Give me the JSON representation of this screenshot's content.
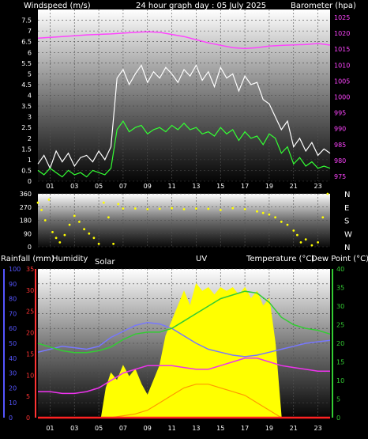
{
  "chart_data": [
    {
      "type": "line",
      "title": "24 hour graph day : 05 July 2025",
      "left_axis_label": "Windspeed (m/s)",
      "right_axis_label": "Barometer (hpa)",
      "x_ticks": [
        "01",
        "03",
        "05",
        "07",
        "09",
        "11",
        "13",
        "15",
        "17",
        "19",
        "21",
        "23"
      ],
      "x_range": [
        0,
        24
      ],
      "left_ticks": [
        "0",
        "0.5",
        "1",
        "1.5",
        "2",
        "2.5",
        "3",
        "3.5",
        "4",
        "4.5",
        "5",
        "5.5",
        "6",
        "6.5",
        "7",
        "7.5"
      ],
      "left_range": [
        0,
        8
      ],
      "right_ticks": [
        "975",
        "980",
        "985",
        "990",
        "995",
        "1000",
        "1005",
        "1010",
        "1015",
        "1020",
        "1025"
      ],
      "right_range": [
        973.5,
        1027.5
      ],
      "series": [
        {
          "role": "gust",
          "color": "#ffffff",
          "x": [
            0,
            0.5,
            1,
            1.5,
            2,
            2.5,
            3,
            3.5,
            4,
            4.5,
            5,
            5.5,
            6,
            6.5,
            7,
            7.5,
            8,
            8.5,
            9,
            9.5,
            10,
            10.5,
            11,
            11.5,
            12,
            12.5,
            13,
            13.5,
            14,
            14.5,
            15,
            15.5,
            16,
            16.5,
            17,
            17.5,
            18,
            18.5,
            19,
            19.5,
            20,
            20.5,
            21,
            21.5,
            22,
            22.5,
            23,
            23.5,
            24
          ],
          "y": [
            0.8,
            1.2,
            0.6,
            1.4,
            0.9,
            1.3,
            0.7,
            1.1,
            1.2,
            0.9,
            1.4,
            1.0,
            1.6,
            4.8,
            5.2,
            4.5,
            5.0,
            5.4,
            4.6,
            5.1,
            4.8,
            5.3,
            5.0,
            4.6,
            5.2,
            4.9,
            5.4,
            4.7,
            5.1,
            4.4,
            5.3,
            4.8,
            5.0,
            4.2,
            4.9,
            4.5,
            4.6,
            3.8,
            3.6,
            3.0,
            2.4,
            2.8,
            1.6,
            2.0,
            1.4,
            1.8,
            1.2,
            1.5,
            1.3
          ]
        },
        {
          "role": "average",
          "color": "#33ff33",
          "x": [
            0,
            0.5,
            1,
            1.5,
            2,
            2.5,
            3,
            3.5,
            4,
            4.5,
            5,
            5.5,
            6,
            6.5,
            7,
            7.5,
            8,
            8.5,
            9,
            9.5,
            10,
            10.5,
            11,
            11.5,
            12,
            12.5,
            13,
            13.5,
            14,
            14.5,
            15,
            15.5,
            16,
            16.5,
            17,
            17.5,
            18,
            18.5,
            19,
            19.5,
            20,
            20.5,
            21,
            21.5,
            22,
            22.5,
            23,
            23.5,
            24
          ],
          "y": [
            0.5,
            0.3,
            0.6,
            0.4,
            0.2,
            0.5,
            0.3,
            0.4,
            0.2,
            0.5,
            0.4,
            0.3,
            0.6,
            2.4,
            2.8,
            2.3,
            2.5,
            2.6,
            2.2,
            2.4,
            2.5,
            2.3,
            2.6,
            2.4,
            2.7,
            2.4,
            2.5,
            2.2,
            2.3,
            2.1,
            2.5,
            2.2,
            2.4,
            1.9,
            2.3,
            2.0,
            2.1,
            1.7,
            2.2,
            2.0,
            1.3,
            1.6,
            0.8,
            1.1,
            0.7,
            0.9,
            0.6,
            0.7,
            0.6
          ]
        },
        {
          "role": "barometer",
          "color": "#ff44ff",
          "axis": "right",
          "x": [
            0,
            2,
            4,
            6,
            8,
            9,
            10,
            12,
            14,
            16,
            17,
            18,
            19,
            20,
            22,
            23,
            24
          ],
          "y": [
            1018.5,
            1019,
            1019.5,
            1019.8,
            1020.3,
            1020.5,
            1020.3,
            1019,
            1017,
            1015.5,
            1015.2,
            1015.5,
            1016,
            1016.2,
            1016.5,
            1016.8,
            1016.3
          ]
        }
      ]
    },
    {
      "type": "scatter",
      "left_ticks": [
        "0",
        "90",
        "180",
        "270",
        "360"
      ],
      "y_range": [
        0,
        360
      ],
      "right_ticks": [
        "N",
        "W",
        "S",
        "E",
        "N"
      ],
      "x_ticks": [
        "01",
        "03",
        "05",
        "07",
        "09",
        "11",
        "13",
        "15",
        "17",
        "19",
        "21",
        "23"
      ],
      "x_range": [
        0,
        24
      ],
      "series": [
        {
          "role": "wind-direction",
          "color": "#ffff00",
          "x": [
            0,
            0.3,
            0.6,
            0.9,
            1.2,
            1.5,
            1.8,
            2.2,
            2.6,
            3,
            3.4,
            3.8,
            4.2,
            4.6,
            5,
            5.4,
            5.8,
            6.2,
            6.6,
            7,
            8,
            9,
            10,
            11,
            12,
            13,
            14,
            15,
            16,
            17,
            18,
            18.5,
            19,
            19.5,
            20,
            20.5,
            21,
            21.3,
            21.6,
            22,
            22.5,
            23,
            23.4,
            23.8
          ],
          "y": [
            300,
            250,
            180,
            320,
            100,
            60,
            30,
            80,
            150,
            210,
            170,
            120,
            90,
            60,
            20,
            300,
            200,
            20,
            290,
            260,
            260,
            255,
            258,
            262,
            255,
            260,
            258,
            250,
            262,
            255,
            240,
            230,
            220,
            200,
            170,
            150,
            110,
            80,
            30,
            50,
            10,
            30,
            200,
            360
          ]
        }
      ]
    },
    {
      "type": "line",
      "labels": [
        "Rainfall (mm)",
        "Humidity",
        "Solar",
        "UV",
        "Temperature (°C)",
        "Dew Point (°C)"
      ],
      "x_ticks": [
        "01",
        "03",
        "05",
        "07",
        "09",
        "11",
        "13",
        "15",
        "17",
        "19",
        "21",
        "23"
      ],
      "x_range": [
        0,
        24
      ],
      "rain_ticks": [
        "0",
        "5",
        "10",
        "15",
        "20",
        "25",
        "30",
        "35"
      ],
      "rain_range": [
        0,
        35
      ],
      "humidity_ticks": [
        "0",
        "10",
        "20",
        "30",
        "40",
        "50",
        "60",
        "70",
        "80",
        "90",
        "100"
      ],
      "humidity_range": [
        0,
        100
      ],
      "temp_ticks": [
        "0",
        "5",
        "10",
        "15",
        "20",
        "25",
        "30",
        "35",
        "40"
      ],
      "temp_range": [
        0,
        40
      ],
      "series": [
        {
          "role": "solar",
          "color": "#ffff00",
          "x": [
            0,
            5.2,
            5.6,
            6,
            6.5,
            7,
            7.5,
            8,
            8.5,
            9,
            9.5,
            10,
            10.5,
            11,
            11.5,
            12,
            12.5,
            13,
            13.5,
            14,
            14.5,
            15,
            15.5,
            16,
            16.5,
            17,
            17.5,
            18,
            18.5,
            19,
            19.5,
            20,
            24
          ],
          "y": [
            0,
            0,
            8,
            12,
            10,
            14,
            11,
            13,
            9,
            6,
            10,
            14,
            22,
            26,
            30,
            34,
            30,
            36,
            34,
            35,
            33,
            35,
            34,
            35,
            33,
            35,
            32,
            34,
            30,
            32,
            20,
            0,
            0
          ]
        },
        {
          "role": "uv",
          "color": "#ff9900",
          "x": [
            0,
            6,
            7,
            8,
            9,
            10,
            11,
            12,
            13,
            14,
            15,
            16,
            17,
            18,
            19,
            20,
            24
          ],
          "y": [
            0,
            0,
            0.5,
            1,
            2,
            4,
            6,
            8,
            9,
            9,
            8,
            7,
            6,
            4,
            2,
            0,
            0
          ]
        },
        {
          "role": "humidity",
          "color": "#7777ff",
          "x": [
            0,
            1,
            2,
            3,
            4,
            5,
            6,
            7,
            8,
            9,
            10,
            11,
            12,
            13,
            14,
            15,
            16,
            17,
            18,
            19,
            20,
            21,
            22,
            23,
            24
          ],
          "y": [
            44,
            46,
            48,
            47,
            46,
            48,
            54,
            58,
            62,
            64,
            63,
            60,
            55,
            50,
            46,
            44,
            42,
            41,
            42,
            44,
            46,
            48,
            50,
            51,
            52
          ]
        },
        {
          "role": "temperature",
          "color": "#33cc33",
          "x": [
            0,
            1,
            2,
            3,
            4,
            5,
            6,
            7,
            8,
            9,
            10,
            11,
            12,
            13,
            14,
            15,
            16,
            17,
            18,
            19,
            20,
            21,
            22,
            23,
            24
          ],
          "y": [
            20,
            19,
            18,
            17.5,
            17.5,
            18,
            19,
            21,
            22.5,
            23,
            23,
            24,
            26,
            28,
            30,
            32,
            33,
            34,
            33.5,
            31,
            27,
            25,
            24,
            23.5,
            22.5
          ]
        },
        {
          "role": "dewpoint",
          "color": "#ee33ee",
          "x": [
            0,
            1,
            2,
            3,
            4,
            5,
            6,
            7,
            8,
            9,
            10,
            11,
            12,
            13,
            14,
            15,
            16,
            17,
            18,
            19,
            20,
            21,
            22,
            23,
            24
          ],
          "y": [
            7,
            7,
            6.5,
            6.5,
            7,
            8,
            10,
            12,
            13,
            14,
            14,
            14,
            13.5,
            13,
            13,
            14,
            15,
            16,
            16,
            15,
            14,
            13.5,
            13,
            12.5,
            12.5
          ]
        },
        {
          "role": "rainfall",
          "color": "#ff2222",
          "x": [
            0,
            24
          ],
          "y": [
            0,
            0
          ]
        }
      ]
    }
  ]
}
